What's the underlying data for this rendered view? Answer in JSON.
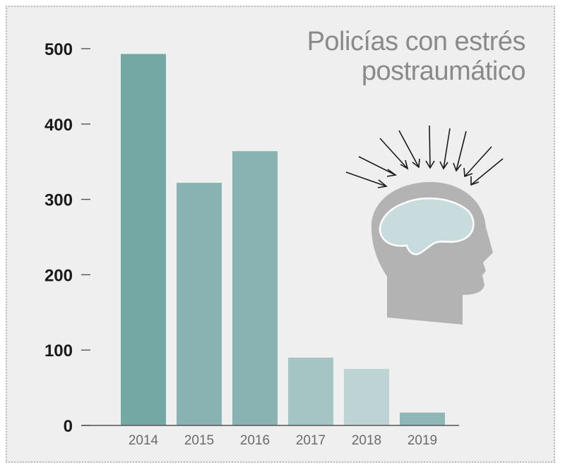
{
  "chart_data": {
    "type": "bar",
    "title": "Policías con estrés postraumático",
    "title_lines": [
      "Policías con estrés",
      "postraumático"
    ],
    "categories": [
      "2014",
      "2015",
      "2016",
      "2017",
      "2018",
      "2019"
    ],
    "values": [
      493,
      322,
      364,
      90,
      75,
      17
    ],
    "xlabel": "",
    "ylabel": "",
    "ylim": [
      0,
      500
    ],
    "yticks": [
      "0",
      "100",
      "200",
      "300",
      "400",
      "500"
    ],
    "grid": false,
    "colors": [
      "#73a8a5",
      "#89b3b2",
      "#89b3b2",
      "#a5c4c4",
      "#bed3d4",
      "#8fb6b8"
    ]
  },
  "illustration": {
    "icon": "stressed-head-icon",
    "head_color": "#b3b3b3",
    "brain_color": "#c9dcdd",
    "arrow_color": "#1a1a1a"
  }
}
